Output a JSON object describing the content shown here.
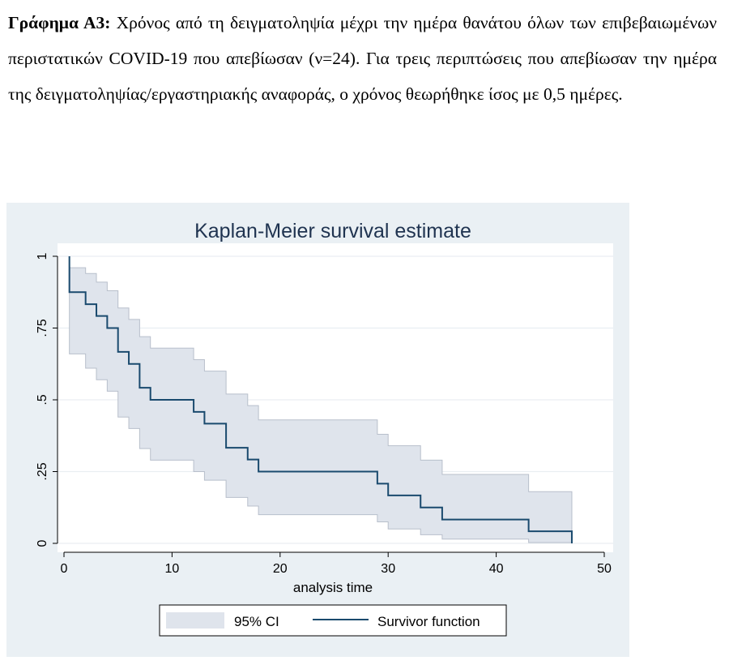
{
  "caption": {
    "label": "Γράφημα Α3:",
    "text": "Χρόνος από τη δειγματοληψία μέχρι την ημέρα θανάτου όλων των επιβεβαιωμένων περιστατικών COVID-19 που απεβίωσαν (ν=24). Για τρεις περιπτώσεις που απεβίωσαν την ημέρα της δειγματοληψίας/εργαστηριακής αναφοράς, ο χρόνος θεωρήθηκε ίσος με 0,5 ημέρες."
  },
  "colors": {
    "panel_bg": "#eaf0f4",
    "plot_bg": "#ffffff",
    "ci_fill": "#dfe4ec",
    "ci_edge": "#b8bfcb",
    "survivor_line": "#1a4a6e",
    "title": "#1f3350",
    "grid": "#e9eef2"
  },
  "chart_data": {
    "type": "line",
    "title": "Kaplan-Meier survival estimate",
    "xlabel": "analysis time",
    "ylabel": "",
    "xlim": [
      0,
      50
    ],
    "ylim": [
      0,
      1
    ],
    "xticks": [
      0,
      10,
      20,
      30,
      40,
      50
    ],
    "xtick_labels": [
      "0",
      "10",
      "20",
      "30",
      "40",
      "50"
    ],
    "yticks": [
      0,
      0.25,
      0.5,
      0.75,
      1
    ],
    "ytick_labels": [
      "0",
      ".25",
      ".5",
      ".75",
      "1"
    ],
    "grid": true,
    "legend_position": "bottom",
    "series": [
      {
        "name": "Survivor function",
        "kind": "step",
        "x": [
          0.5,
          0.5,
          2,
          3,
          4,
          5,
          6,
          7,
          8,
          12,
          13,
          15,
          17,
          18,
          29,
          30,
          33,
          35,
          43,
          47
        ],
        "y": [
          1.0,
          0.875,
          0.833,
          0.792,
          0.75,
          0.667,
          0.625,
          0.542,
          0.5,
          0.458,
          0.417,
          0.333,
          0.292,
          0.25,
          0.208,
          0.167,
          0.125,
          0.083,
          0.042,
          0.0
        ]
      },
      {
        "name": "95% CI",
        "kind": "band",
        "x": [
          0.5,
          0.5,
          2,
          3,
          4,
          5,
          6,
          7,
          8,
          12,
          13,
          15,
          17,
          18,
          29,
          30,
          33,
          35,
          43,
          47
        ],
        "lower": [
          1.0,
          0.66,
          0.61,
          0.57,
          0.53,
          0.44,
          0.4,
          0.33,
          0.29,
          0.25,
          0.22,
          0.16,
          0.13,
          0.1,
          0.075,
          0.05,
          0.03,
          0.015,
          0.003,
          0.003
        ],
        "upper": [
          1.0,
          0.96,
          0.94,
          0.91,
          0.88,
          0.82,
          0.78,
          0.72,
          0.68,
          0.64,
          0.6,
          0.52,
          0.48,
          0.43,
          0.38,
          0.34,
          0.29,
          0.24,
          0.18,
          0.18
        ]
      }
    ],
    "legend": [
      "95% CI",
      "Survivor function"
    ]
  }
}
